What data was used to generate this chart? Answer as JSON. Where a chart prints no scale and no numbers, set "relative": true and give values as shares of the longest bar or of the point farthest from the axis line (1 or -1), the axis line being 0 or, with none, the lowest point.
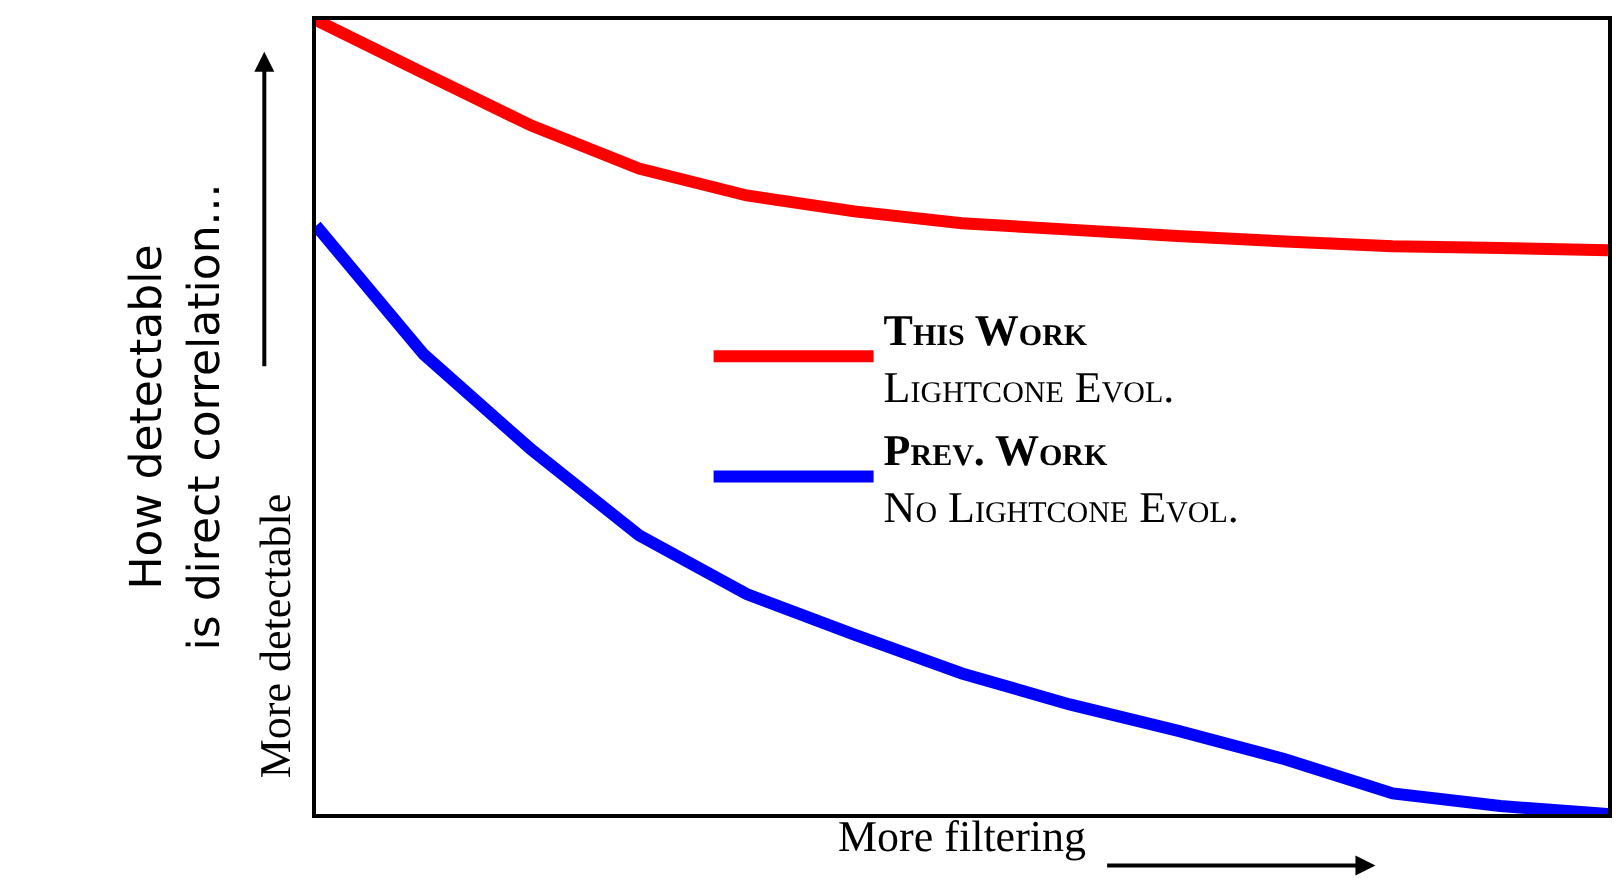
{
  "chart_data": {
    "type": "line",
    "relative": true,
    "xlabel": "More filtering",
    "ylabel": "How detectable\nis direct correlation...",
    "annotations": [
      "More detectable"
    ],
    "categories": [
      null,
      null,
      null,
      null,
      null,
      null,
      null,
      null,
      null,
      null,
      null,
      null,
      null
    ],
    "series": [
      {
        "name": "This Work\nLightcone Evol.",
        "color": "#ff0000",
        "values": [
          1,
          0.933,
          0.867,
          0.813,
          0.779,
          0.759,
          0.744,
          0.736,
          0.728,
          0.721,
          0.715,
          0.713,
          0.71
        ]
      },
      {
        "name": "Prev. Work\nNo Lightcone Evol.",
        "color": "#0000ff",
        "values": [
          0.741,
          0.579,
          0.459,
          0.351,
          0.277,
          0.226,
          0.177,
          0.138,
          0.105,
          0.069,
          0.026,
          0.01,
          0
        ]
      }
    ],
    "legend": "right",
    "marker": "none",
    "line_style": "solid"
  }
}
